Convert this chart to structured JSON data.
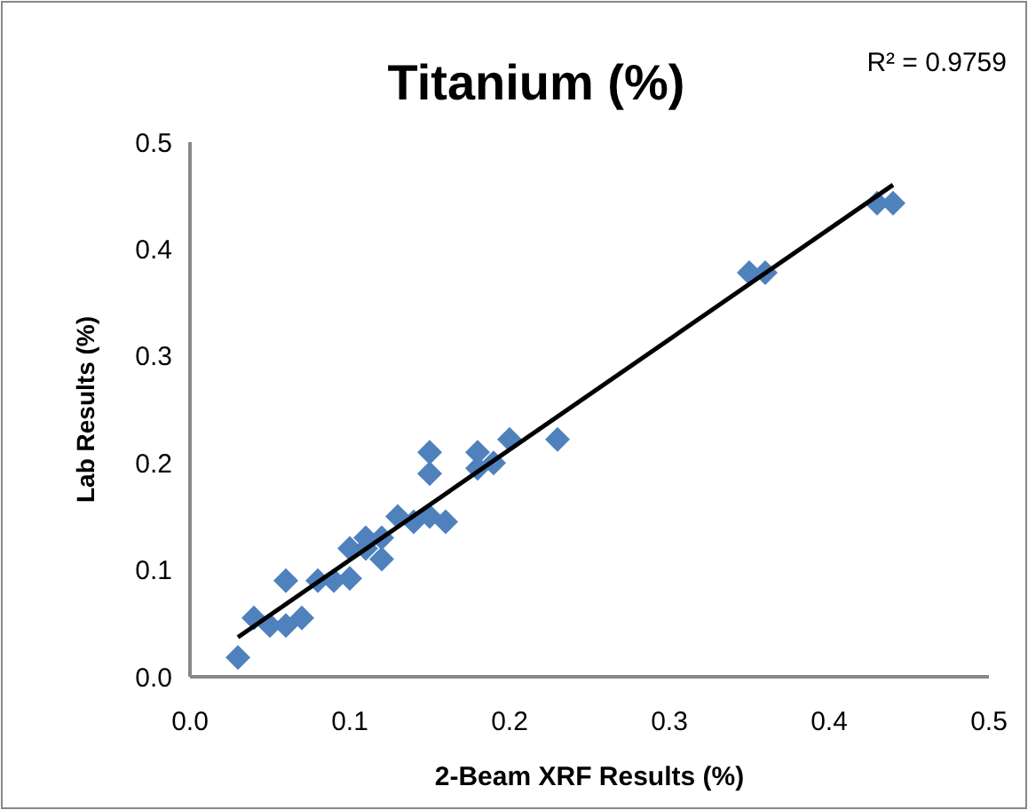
{
  "chart_data": {
    "type": "scatter",
    "title": "Titanium (%)",
    "xlabel": "2-Beam XRF Results (%)",
    "ylabel": "Lab Results (%)",
    "annotations": [
      "R² = 0.9759"
    ],
    "marker": "diamond",
    "grid": false,
    "xlim": [
      0,
      0.5
    ],
    "xticks": [
      {
        "value": 0,
        "label": "0.0"
      },
      0.1,
      0.2,
      0.3,
      0.4,
      0.5
    ],
    "ylim": [
      0,
      0.5
    ],
    "yticks": [
      {
        "value": 0,
        "label": "0.0"
      },
      0.1,
      0.2,
      0.3,
      0.4,
      0.5
    ],
    "series": [
      {
        "color": "#4f81bd",
        "x": [
          0.03,
          0.04,
          0.05,
          0.06,
          0.06,
          0.07,
          0.08,
          0.09,
          0.1,
          0.1,
          0.11,
          0.11,
          0.12,
          0.12,
          0.13,
          0.14,
          0.15,
          0.15,
          0.15,
          0.16,
          0.18,
          0.18,
          0.19,
          0.2,
          0.23,
          0.35,
          0.36,
          0.43,
          0.44
        ],
        "values": [
          0.018,
          0.055,
          0.048,
          0.048,
          0.09,
          0.055,
          0.09,
          0.09,
          0.092,
          0.12,
          0.13,
          0.12,
          0.11,
          0.13,
          0.15,
          0.145,
          0.15,
          0.19,
          0.21,
          0.145,
          0.195,
          0.21,
          0.2,
          0.222,
          0.222,
          0.378,
          0.378,
          0.443,
          0.443
        ]
      },
      {
        "type": "line",
        "color": "#000000",
        "marker": "none",
        "x": [
          0.03,
          0.44
        ],
        "values": [
          0.037,
          0.46
        ]
      }
    ]
  }
}
